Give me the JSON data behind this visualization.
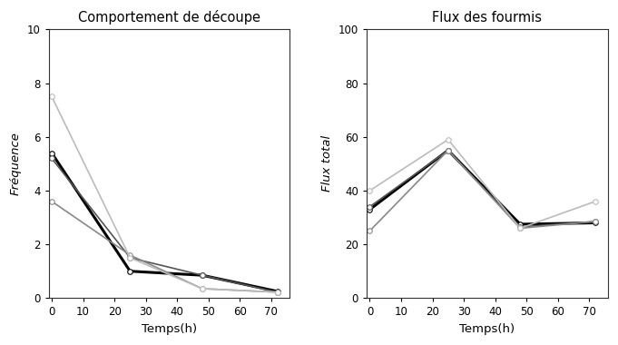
{
  "title_left": "Comportement de découpe",
  "title_right": "Flux des fourmis",
  "xlabel": "Temps(h)",
  "ylabel_left": "Fréquence",
  "ylabel_right": "Flux total",
  "x": [
    0,
    25,
    48,
    72
  ],
  "left_series": [
    {
      "y": [
        5.4,
        1.0,
        0.85,
        0.25
      ],
      "color": "#000000",
      "lw": 2.2,
      "marker": "o",
      "ms": 4
    },
    {
      "y": [
        5.2,
        1.5,
        0.85,
        0.22
      ],
      "color": "#555555",
      "lw": 1.2,
      "marker": "o",
      "ms": 4
    },
    {
      "y": [
        3.6,
        1.6,
        0.35,
        0.22
      ],
      "color": "#888888",
      "lw": 1.2,
      "marker": "o",
      "ms": 4
    },
    {
      "y": [
        7.5,
        1.5,
        0.35,
        0.22
      ],
      "color": "#bbbbbb",
      "lw": 1.2,
      "marker": "o",
      "ms": 4
    }
  ],
  "right_series": [
    {
      "y": [
        33,
        55,
        27.5,
        28
      ],
      "color": "#000000",
      "lw": 2.2,
      "marker": "o",
      "ms": 4
    },
    {
      "y": [
        34,
        55,
        26.5,
        28.5
      ],
      "color": "#555555",
      "lw": 1.2,
      "marker": "o",
      "ms": 4
    },
    {
      "y": [
        25,
        55,
        26,
        28.5
      ],
      "color": "#888888",
      "lw": 1.2,
      "marker": "o",
      "ms": 4
    },
    {
      "y": [
        40,
        59,
        26,
        36
      ],
      "color": "#bbbbbb",
      "lw": 1.2,
      "marker": "o",
      "ms": 4
    }
  ],
  "left_ylim": [
    0,
    10
  ],
  "right_ylim": [
    0,
    100
  ],
  "left_yticks": [
    0,
    2,
    4,
    6,
    8,
    10
  ],
  "right_yticks": [
    0,
    20,
    40,
    60,
    80,
    100
  ],
  "xticks": [
    0,
    10,
    20,
    30,
    40,
    50,
    60,
    70
  ],
  "xlim": [
    -1,
    76
  ],
  "bg_color": "#ffffff",
  "marker_facecolor": "white",
  "fig_width": 6.81,
  "fig_height": 3.8,
  "title_fontsize": 10.5,
  "label_fontsize": 9.5,
  "tick_fontsize": 8.5
}
